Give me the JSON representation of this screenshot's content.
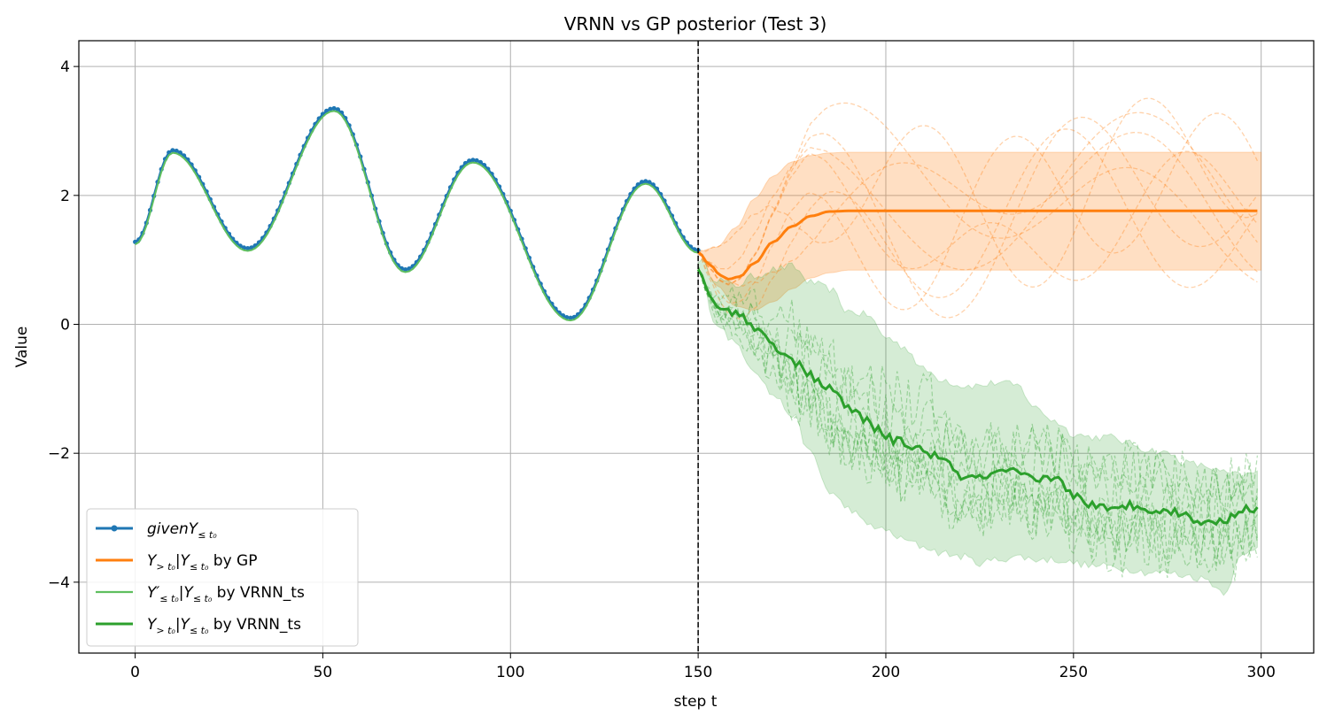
{
  "chart_data": {
    "type": "line",
    "title": "VRNN vs GP posterior (Test 3)",
    "xlabel": "step t",
    "ylabel": "Value",
    "xlim": [
      -15,
      314
    ],
    "ylim": [
      -5.1,
      4.4
    ],
    "xticks": [
      0,
      50,
      100,
      150,
      200,
      250,
      300
    ],
    "yticks": [
      4,
      2,
      0,
      -2,
      -4
    ],
    "xtick_labels": [
      "0",
      "50",
      "100",
      "150",
      "200",
      "250",
      "300"
    ],
    "ytick_labels": [
      "4",
      "2",
      "0",
      "−2",
      "−4"
    ],
    "grid": true,
    "legend_position": "lower-left",
    "vline_x": 150,
    "colors": {
      "given": "#1f77b4",
      "gp": "#ff7f0e",
      "vrnn_fit": "#5fbf5f",
      "vrnn": "#2ca02c"
    },
    "given": {
      "x_start": 0,
      "x_end": 150,
      "y_at_t": [
        [
          0,
          1.28
        ],
        [
          10,
          2.7
        ],
        [
          30,
          1.18
        ],
        [
          53,
          3.35
        ],
        [
          72,
          0.85
        ],
        [
          90,
          2.55
        ],
        [
          116,
          0.1
        ],
        [
          136,
          2.22
        ],
        [
          150,
          1.15
        ]
      ]
    },
    "gp_mean": [
      [
        150,
        1.12
      ],
      [
        153,
        0.93
      ],
      [
        156,
        0.76
      ],
      [
        158,
        0.7
      ],
      [
        161,
        0.74
      ],
      [
        165,
        0.95
      ],
      [
        170,
        1.28
      ],
      [
        175,
        1.52
      ],
      [
        180,
        1.68
      ],
      [
        185,
        1.75
      ],
      [
        190,
        1.76
      ],
      [
        200,
        1.76
      ],
      [
        300,
        1.76
      ]
    ],
    "gp_band": {
      "upper": [
        [
          150,
          1.13
        ],
        [
          155,
          1.2
        ],
        [
          160,
          1.5
        ],
        [
          165,
          1.95
        ],
        [
          170,
          2.3
        ],
        [
          175,
          2.52
        ],
        [
          180,
          2.62
        ],
        [
          185,
          2.66
        ],
        [
          190,
          2.67
        ],
        [
          300,
          2.67
        ]
      ],
      "lower": [
        [
          150,
          1.1
        ],
        [
          155,
          0.6
        ],
        [
          160,
          0.28
        ],
        [
          165,
          0.22
        ],
        [
          170,
          0.35
        ],
        [
          175,
          0.55
        ],
        [
          180,
          0.72
        ],
        [
          185,
          0.8
        ],
        [
          190,
          0.84
        ],
        [
          300,
          0.84
        ]
      ]
    },
    "vrnn_mean": [
      [
        150,
        0.9
      ],
      [
        152,
        0.55
      ],
      [
        155,
        0.25
      ],
      [
        160,
        0.2
      ],
      [
        165,
        -0.05
      ],
      [
        170,
        -0.3
      ],
      [
        175,
        -0.55
      ],
      [
        180,
        -0.8
      ],
      [
        185,
        -1.0
      ],
      [
        190,
        -1.3
      ],
      [
        195,
        -1.5
      ],
      [
        200,
        -1.75
      ],
      [
        205,
        -1.85
      ],
      [
        210,
        -1.95
      ],
      [
        215,
        -2.1
      ],
      [
        220,
        -2.35
      ],
      [
        225,
        -2.4
      ],
      [
        230,
        -2.3
      ],
      [
        235,
        -2.3
      ],
      [
        240,
        -2.45
      ],
      [
        245,
        -2.35
      ],
      [
        250,
        -2.65
      ],
      [
        255,
        -2.8
      ],
      [
        260,
        -2.9
      ],
      [
        265,
        -2.8
      ],
      [
        270,
        -2.85
      ],
      [
        275,
        -2.9
      ],
      [
        280,
        -2.95
      ],
      [
        285,
        -3.1
      ],
      [
        290,
        -3.05
      ],
      [
        295,
        -2.85
      ],
      [
        299,
        -2.9
      ]
    ],
    "vrnn_band": {
      "upper": [
        [
          150,
          1.0
        ],
        [
          155,
          0.7
        ],
        [
          160,
          0.6
        ],
        [
          165,
          0.75
        ],
        [
          170,
          0.85
        ],
        [
          175,
          0.9
        ],
        [
          180,
          0.65
        ],
        [
          185,
          0.55
        ],
        [
          190,
          0.2
        ],
        [
          195,
          0.15
        ],
        [
          200,
          -0.2
        ],
        [
          205,
          -0.35
        ],
        [
          210,
          -0.7
        ],
        [
          215,
          -0.85
        ],
        [
          220,
          -0.95
        ],
        [
          225,
          -0.95
        ],
        [
          230,
          -0.9
        ],
        [
          235,
          -0.95
        ],
        [
          240,
          -1.3
        ],
        [
          245,
          -1.5
        ],
        [
          250,
          -1.7
        ],
        [
          255,
          -1.75
        ],
        [
          260,
          -1.75
        ],
        [
          265,
          -1.85
        ],
        [
          270,
          -1.95
        ],
        [
          275,
          -2.0
        ],
        [
          280,
          -2.15
        ],
        [
          285,
          -2.2
        ],
        [
          290,
          -2.3
        ],
        [
          295,
          -2.35
        ],
        [
          299,
          -2.3
        ]
      ],
      "lower": [
        [
          150,
          0.85
        ],
        [
          155,
          0.0
        ],
        [
          160,
          -0.3
        ],
        [
          165,
          -0.7
        ],
        [
          170,
          -1.1
        ],
        [
          175,
          -1.4
        ],
        [
          180,
          -2.0
        ],
        [
          185,
          -2.6
        ],
        [
          190,
          -2.85
        ],
        [
          195,
          -3.1
        ],
        [
          200,
          -3.2
        ],
        [
          205,
          -3.35
        ],
        [
          210,
          -3.45
        ],
        [
          215,
          -3.55
        ],
        [
          220,
          -3.6
        ],
        [
          225,
          -3.7
        ],
        [
          230,
          -3.65
        ],
        [
          235,
          -3.6
        ],
        [
          240,
          -3.65
        ],
        [
          245,
          -3.65
        ],
        [
          250,
          -3.7
        ],
        [
          255,
          -3.75
        ],
        [
          260,
          -3.75
        ],
        [
          265,
          -3.8
        ],
        [
          270,
          -3.85
        ],
        [
          275,
          -3.85
        ],
        [
          280,
          -3.9
        ],
        [
          285,
          -3.95
        ],
        [
          290,
          -4.15
        ],
        [
          295,
          -3.6
        ],
        [
          299,
          -3.45
        ]
      ]
    },
    "legend": [
      {
        "label": "givenY",
        "sub": "≤ t₀",
        "style": "line-marker",
        "color": "#1f77b4"
      },
      {
        "label": "Y",
        "sub": "> t₀",
        "label2": "|Y",
        "sub2": "≤ t₀",
        "suffix": " by GP",
        "style": "line",
        "color": "#ff7f0e"
      },
      {
        "label": "Y′",
        "sub": "≤ t₀",
        "label2": "|Y",
        "sub2": "≤ t₀",
        "suffix": " by VRNN_ts",
        "style": "line",
        "color": "#5fbf5f"
      },
      {
        "label": "Y",
        "sub": "> t₀",
        "label2": "|Y",
        "sub2": "≤ t₀",
        "suffix": " by VRNN_ts",
        "style": "line",
        "color": "#2ca02c"
      }
    ]
  }
}
